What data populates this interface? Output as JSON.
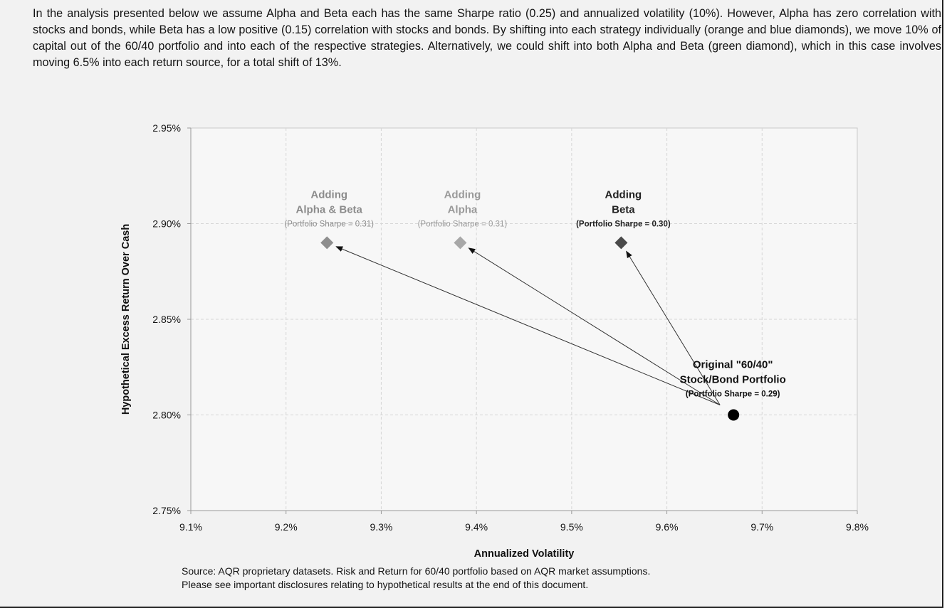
{
  "intro_text": "In the analysis presented below we assume Alpha and Beta each has the same Sharpe ratio (0.25) and annualized volatility (10%). However, Alpha has zero correlation with stocks and bonds, while Beta has a low positive (0.15) correlation with stocks and bonds. By shifting into each strategy individually (orange and blue diamonds), we move 10% of capital out of the 60/40 portfolio and into each of the respective strategies. Alternatively, we could shift into both Alpha and Beta (green diamond), which in this case involves moving 6.5% into each return source, for a total shift of 13%.",
  "source_note": {
    "line1": "Source: AQR proprietary datasets. Risk and Return for 60/40 portfolio based on AQR market assumptions.",
    "line2": "Please see important disclosures relating to hypothetical results at the end of this document."
  },
  "chart_data": {
    "type": "scatter",
    "xlabel": "Annualized Volatility",
    "ylabel": "Hypothetical Excess Return Over Cash",
    "xlim": [
      9.1,
      9.8
    ],
    "ylim": [
      2.75,
      2.95
    ],
    "x_ticks": [
      9.1,
      9.2,
      9.3,
      9.4,
      9.5,
      9.6,
      9.7,
      9.8
    ],
    "y_ticks": [
      2.75,
      2.8,
      2.85,
      2.9,
      2.95
    ],
    "x_tick_labels": [
      "9.1%",
      "9.2%",
      "9.3%",
      "9.4%",
      "9.5%",
      "9.6%",
      "9.7%",
      "9.8%"
    ],
    "y_tick_labels": [
      "2.75%",
      "2.80%",
      "2.85%",
      "2.90%",
      "2.95%"
    ],
    "grid": true,
    "points": [
      {
        "id": "original",
        "x": 9.67,
        "y": 2.8,
        "marker": "circle",
        "color": "#000000",
        "label_lines": [
          "Original \"60/40\"",
          "Stock/Bond Portfolio"
        ],
        "sub_label": "(Portfolio Sharpe = 0.29)",
        "label_color": "#111111"
      },
      {
        "id": "alpha-beta",
        "x": 9.243,
        "y": 2.89,
        "marker": "diamond",
        "color": "#8e8e8e",
        "label_lines": [
          "Adding",
          "Alpha & Beta"
        ],
        "sub_label": "(Portfolio Sharpe = 0.31)",
        "label_color": "#8c8c8c"
      },
      {
        "id": "alpha",
        "x": 9.383,
        "y": 2.89,
        "marker": "diamond",
        "color": "#a8a8a8",
        "label_lines": [
          "Adding",
          "Alpha"
        ],
        "sub_label": "(Portfolio Sharpe = 0.31)",
        "label_color": "#9a9a9a"
      },
      {
        "id": "beta",
        "x": 9.552,
        "y": 2.89,
        "marker": "diamond",
        "color": "#4a4a4a",
        "label_lines": [
          "Adding",
          "Beta"
        ],
        "sub_label": "(Portfolio Sharpe = 0.30)",
        "label_color": "#222222"
      }
    ],
    "arrows": [
      {
        "from": "original",
        "to": "alpha-beta"
      },
      {
        "from": "original",
        "to": "alpha"
      },
      {
        "from": "original",
        "to": "beta"
      }
    ]
  }
}
